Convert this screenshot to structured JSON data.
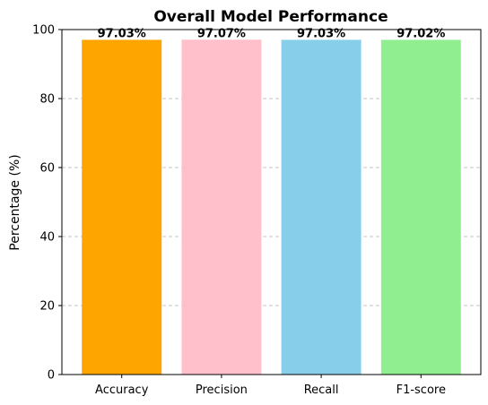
{
  "chart_data": {
    "type": "bar",
    "title": "Overall Model Performance",
    "xlabel": "",
    "ylabel": "Percentage (%)",
    "categories": [
      "Accuracy",
      "Precision",
      "Recall",
      "F1-score"
    ],
    "values": [
      97.03,
      97.07,
      97.03,
      97.02
    ],
    "value_labels": [
      "97.03%",
      "97.07%",
      "97.03%",
      "97.02%"
    ],
    "colors": [
      "#FFA500",
      "#FFC0CB",
      "#87CEEB",
      "#90EE90"
    ],
    "ylim": [
      0,
      100
    ],
    "yticks": [
      0,
      20,
      40,
      60,
      80,
      100
    ],
    "grid": "y-dashed",
    "legend": "none"
  }
}
